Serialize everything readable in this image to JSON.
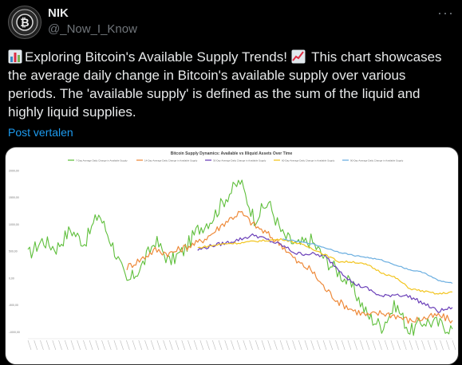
{
  "user": {
    "name": "NIK",
    "handle": "@_Now_I_Know",
    "more_label": "···"
  },
  "tweet": {
    "part1": "Exploring Bitcoin's Available Supply Trends! ",
    "part2": " This chart showcases the average daily change in Bitcoin's available supply over various periods. The 'available supply' is defined as the sum of the liquid and highly liquid supplies.",
    "translate_label": "Post vertalen"
  },
  "icons": {
    "avatar": "bitcoin-logo",
    "emoji1": "bar-chart-emoji",
    "emoji2": "chart-increasing-emoji",
    "more": "more-icon"
  },
  "colors": {
    "accent": "#1d9bf0",
    "background": "#000000",
    "text": "#e7e9ea",
    "muted": "#71767b"
  },
  "chart_data": {
    "type": "line",
    "title": "Bitcoin Supply Dynamics: Available vs Illiquid Assets Over Time",
    "legend": [
      {
        "name": "7-Day Average Daily Change in Available Supply",
        "color": "#5fbf3c"
      },
      {
        "name": "14-Day Average Daily Change in Available Supply",
        "color": "#ee8a3a"
      },
      {
        "name": "30-Day Average Daily Change in Available Supply",
        "color": "#6a3fb8"
      },
      {
        "name": "60-Day Average Daily Change in Available Supply",
        "color": "#f2c41c"
      },
      {
        "name": "90-Day Average Daily Change in Available Supply",
        "color": "#6aaee0"
      }
    ],
    "ytick_labels": [
      "2000,00",
      "1500,00",
      "1000,00",
      "500,00",
      "0,00",
      "-500,00",
      "-1000,00"
    ],
    "legend_position": "top",
    "grid": false,
    "series": [
      {
        "name": "7-Day Average Daily Change in Available Supply",
        "values": [
          420,
          700,
          550,
          900,
          650,
          1200,
          600,
          -100,
          200,
          700,
          300,
          500,
          900,
          1100,
          1500,
          1800,
          1100,
          1400,
          800,
          600,
          700,
          350,
          100,
          -200,
          -700,
          -900,
          -500,
          -1000,
          -800,
          -850,
          -950
        ]
      },
      {
        "name": "14-Day Average Daily Change in Available Supply",
        "values": [
          null,
          null,
          null,
          null,
          null,
          null,
          null,
          200,
          350,
          520,
          450,
          560,
          650,
          820,
          1050,
          1220,
          980,
          800,
          600,
          300,
          150,
          -200,
          -450,
          -600,
          -700,
          -650,
          -700,
          -800,
          -750,
          -700,
          -790
        ]
      },
      {
        "name": "30-Day Average Daily Change in Available Supply",
        "values": [
          null,
          null,
          null,
          null,
          null,
          null,
          null,
          null,
          null,
          null,
          null,
          null,
          520,
          600,
          650,
          720,
          800,
          700,
          600,
          450,
          450,
          400,
          150,
          -100,
          -200,
          -350,
          -300,
          -350,
          -480,
          -620,
          -550
        ]
      },
      {
        "name": "60-Day Average Daily Change in Available Supply",
        "values": [
          null,
          null,
          null,
          null,
          null,
          null,
          null,
          null,
          null,
          null,
          null,
          null,
          560,
          600,
          640,
          650,
          680,
          700,
          720,
          650,
          560,
          430,
          300,
          300,
          240,
          100,
          0,
          -200,
          -250,
          -300,
          -260
        ]
      },
      {
        "name": "90-Day Average Daily Change in Available Supply",
        "values": [
          null,
          null,
          null,
          null,
          null,
          null,
          null,
          null,
          null,
          null,
          null,
          null,
          null,
          null,
          null,
          null,
          null,
          null,
          720,
          680,
          640,
          560,
          480,
          420,
          380,
          330,
          240,
          150,
          100,
          -50,
          -100
        ]
      }
    ],
    "ylim": [
      -1100,
      2100
    ],
    "xlabel": "",
    "ylabel": ""
  }
}
